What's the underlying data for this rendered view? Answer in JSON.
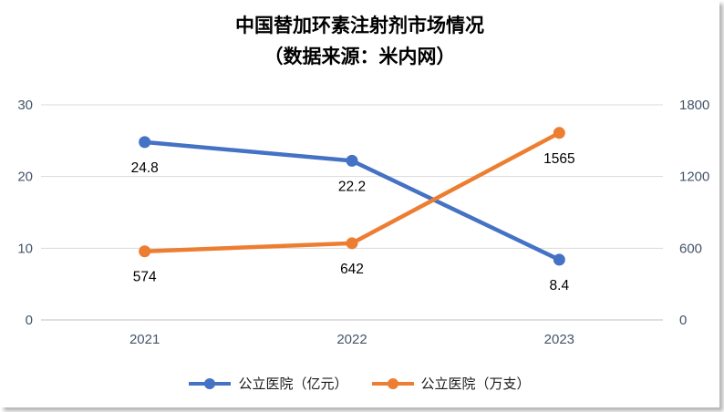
{
  "title": {
    "line1": "中国替加环素注射剂市场情况",
    "line2": "（数据来源：米内网）"
  },
  "chart_data": {
    "type": "line",
    "title": "中国替加环素注射剂市场情况（数据来源：米内网）",
    "categories": [
      "2021",
      "2022",
      "2023"
    ],
    "series": [
      {
        "name": "公立医院（亿元）",
        "axis": "left",
        "color": "#4472C4",
        "values": [
          24.8,
          22.2,
          8.4
        ],
        "point_labels": [
          "24.8",
          "22.2",
          "8.4"
        ]
      },
      {
        "name": "公立医院（万支）",
        "axis": "right",
        "color": "#ED7D31",
        "values": [
          574,
          642,
          1565
        ],
        "point_labels": [
          "574",
          "642",
          "1565"
        ]
      }
    ],
    "left_axis": {
      "min": 0,
      "max": 30,
      "ticks": [
        0,
        10,
        20,
        30
      ]
    },
    "right_axis": {
      "min": 0,
      "max": 1800,
      "ticks": [
        0,
        600,
        1200,
        1800
      ]
    },
    "grid": true,
    "legend_position": "bottom",
    "marker": "circle"
  },
  "colors": {
    "series_blue": "#4472C4",
    "series_orange": "#ED7D31",
    "gridline": "#D9D9D9",
    "axis_text": "#44546A",
    "data_label": "#000000",
    "background": "#FFFFFF"
  }
}
